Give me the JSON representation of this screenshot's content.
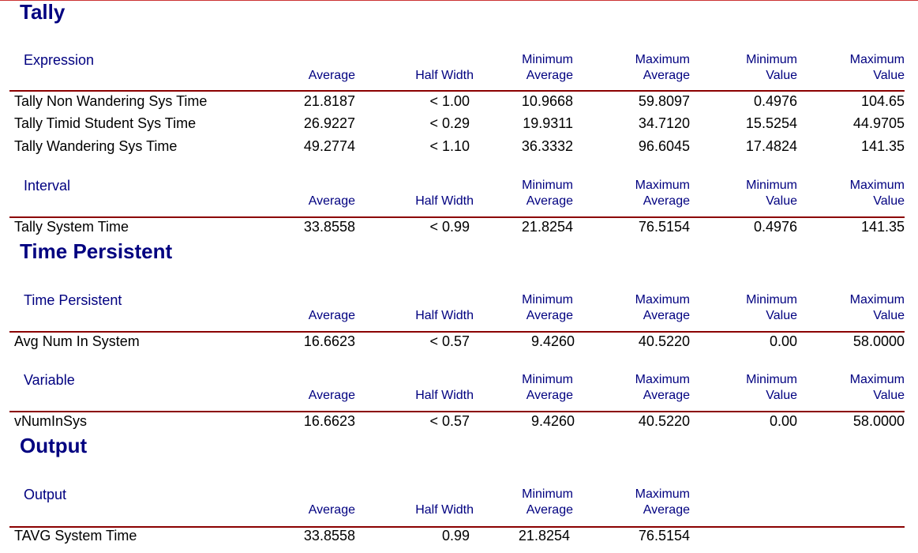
{
  "columns_full": [
    {
      "line1": "",
      "line2": "Average"
    },
    {
      "line1": "",
      "line2": "Half Width"
    },
    {
      "line1": "Minimum",
      "line2": "Average"
    },
    {
      "line1": "Maximum",
      "line2": "Average"
    },
    {
      "line1": "Minimum",
      "line2": "Value"
    },
    {
      "line1": "Maximum",
      "line2": "Value"
    }
  ],
  "sections": [
    {
      "title": "Tally",
      "groups": [
        {
          "header": "Expression",
          "rows": [
            {
              "name": "Tally Non Wandering Sys Time",
              "values": [
                "21.8187",
                "< 1.00",
                "10.9668",
                "59.8097",
                "0.4976",
                "104.65"
              ]
            },
            {
              "name": "Tally Timid Student Sys Time",
              "values": [
                "26.9227",
                "< 0.29",
                "19.9311",
                "34.7120",
                "15.5254",
                "44.9705"
              ]
            },
            {
              "name": "Tally Wandering Sys Time",
              "values": [
                "49.2774",
                "< 1.10",
                "36.3332",
                "96.6045",
                "17.4824",
                "141.35"
              ]
            }
          ]
        },
        {
          "header": "Interval",
          "rows": [
            {
              "name": "Tally System Time",
              "values": [
                "33.8558",
                "< 0.99",
                "21.8254",
                "76.5154",
                "0.4976",
                "141.35"
              ]
            }
          ]
        }
      ]
    },
    {
      "title": "Time Persistent",
      "groups": [
        {
          "header": "Time Persistent",
          "rows": [
            {
              "name": "Avg Num In System",
              "values": [
                "16.6623",
                "< 0.57",
                "9.4260",
                "40.5220",
                "0.00",
                "58.0000"
              ]
            }
          ]
        },
        {
          "header": "Variable",
          "rows": [
            {
              "name": "vNumInSys",
              "values": [
                "16.6623",
                "< 0.57",
                "9.4260",
                "40.5220",
                "0.00",
                "58.0000"
              ]
            }
          ]
        }
      ]
    },
    {
      "title": "Output",
      "groups": [
        {
          "header": "Output",
          "rows": [
            {
              "name": "TAVG System Time",
              "values": [
                "33.8558",
                "0.99",
                "21.8254",
                "76.5154"
              ]
            }
          ]
        }
      ]
    }
  ]
}
